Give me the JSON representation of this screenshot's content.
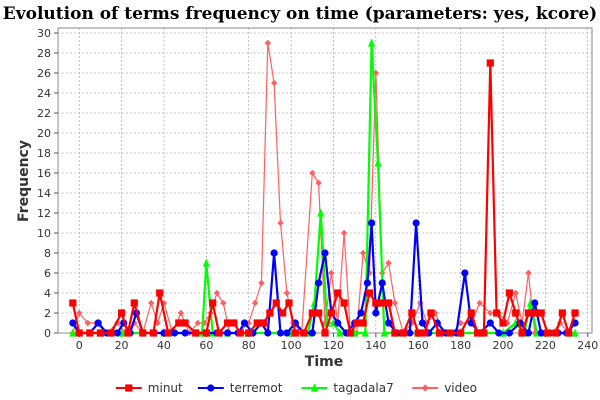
{
  "chart_data": {
    "type": "line",
    "title": "Evolution of terms frequency on time (parameters: yes, kcore)",
    "xlabel": "Time",
    "ylabel": "Frequency",
    "xlim": [
      -10,
      242
    ],
    "ylim": [
      0,
      30.5
    ],
    "x_ticks": [
      0,
      20,
      40,
      60,
      80,
      100,
      120,
      140,
      160,
      180,
      200,
      220,
      240
    ],
    "y_ticks": [
      0,
      2,
      4,
      6,
      8,
      10,
      12,
      14,
      16,
      18,
      20,
      22,
      24,
      26,
      28,
      30
    ],
    "grid": true,
    "legend_position": "bottom",
    "series": [
      {
        "name": "minut",
        "color": "#ff0000",
        "marker": "square",
        "points": [
          [
            -3,
            3
          ],
          [
            0,
            0
          ],
          [
            5,
            0
          ],
          [
            10,
            0
          ],
          [
            15,
            0
          ],
          [
            20,
            2
          ],
          [
            23,
            0
          ],
          [
            26,
            3
          ],
          [
            30,
            0
          ],
          [
            35,
            0
          ],
          [
            38,
            4
          ],
          [
            42,
            0
          ],
          [
            47,
            1
          ],
          [
            50,
            1
          ],
          [
            55,
            0
          ],
          [
            60,
            0
          ],
          [
            63,
            3
          ],
          [
            66,
            0
          ],
          [
            70,
            1
          ],
          [
            73,
            1
          ],
          [
            76,
            0
          ],
          [
            80,
            0
          ],
          [
            84,
            1
          ],
          [
            87,
            1
          ],
          [
            90,
            2
          ],
          [
            93,
            3
          ],
          [
            96,
            2
          ],
          [
            99,
            3
          ],
          [
            102,
            0
          ],
          [
            106,
            0
          ],
          [
            110,
            2
          ],
          [
            113,
            2
          ],
          [
            116,
            0
          ],
          [
            119,
            2
          ],
          [
            122,
            4
          ],
          [
            125,
            3
          ],
          [
            128,
            0
          ],
          [
            131,
            1
          ],
          [
            134,
            1
          ],
          [
            137,
            4
          ],
          [
            140,
            3
          ],
          [
            143,
            3
          ],
          [
            146,
            3
          ],
          [
            149,
            0
          ],
          [
            153,
            0
          ],
          [
            157,
            2
          ],
          [
            160,
            0
          ],
          [
            163,
            0
          ],
          [
            166,
            2
          ],
          [
            170,
            0
          ],
          [
            175,
            0
          ],
          [
            180,
            0
          ],
          [
            185,
            2
          ],
          [
            188,
            0
          ],
          [
            191,
            0
          ],
          [
            194,
            27
          ],
          [
            197,
            2
          ],
          [
            200,
            1
          ],
          [
            203,
            4
          ],
          [
            206,
            2
          ],
          [
            209,
            0
          ],
          [
            212,
            2
          ],
          [
            215,
            2
          ],
          [
            218,
            2
          ],
          [
            221,
            0
          ],
          [
            225,
            0
          ],
          [
            228,
            2
          ],
          [
            231,
            0
          ],
          [
            234,
            2
          ]
        ]
      },
      {
        "name": "terremot",
        "color": "#0000ff",
        "marker": "circle",
        "points": [
          [
            -3,
            1
          ],
          [
            0,
            0
          ],
          [
            5,
            0
          ],
          [
            9,
            1
          ],
          [
            13,
            0
          ],
          [
            18,
            0
          ],
          [
            21,
            1
          ],
          [
            24,
            0
          ],
          [
            27,
            2
          ],
          [
            30,
            0
          ],
          [
            35,
            0
          ],
          [
            40,
            0
          ],
          [
            45,
            0
          ],
          [
            50,
            0
          ],
          [
            55,
            0
          ],
          [
            60,
            0
          ],
          [
            65,
            0
          ],
          [
            70,
            0
          ],
          [
            75,
            0
          ],
          [
            78,
            1
          ],
          [
            82,
            0
          ],
          [
            86,
            1
          ],
          [
            89,
            0
          ],
          [
            92,
            8
          ],
          [
            95,
            0
          ],
          [
            98,
            0
          ],
          [
            102,
            1
          ],
          [
            106,
            0
          ],
          [
            110,
            0
          ],
          [
            113,
            5
          ],
          [
            116,
            8
          ],
          [
            119,
            2
          ],
          [
            122,
            1
          ],
          [
            126,
            0
          ],
          [
            130,
            1
          ],
          [
            133,
            2
          ],
          [
            136,
            5
          ],
          [
            138,
            11
          ],
          [
            140,
            2
          ],
          [
            143,
            5
          ],
          [
            146,
            1
          ],
          [
            150,
            0
          ],
          [
            153,
            0
          ],
          [
            156,
            0
          ],
          [
            159,
            11
          ],
          [
            162,
            1
          ],
          [
            165,
            0
          ],
          [
            169,
            1
          ],
          [
            173,
            0
          ],
          [
            178,
            0
          ],
          [
            182,
            6
          ],
          [
            185,
            1
          ],
          [
            189,
            0
          ],
          [
            194,
            1
          ],
          [
            198,
            0
          ],
          [
            203,
            0
          ],
          [
            208,
            1
          ],
          [
            212,
            0
          ],
          [
            215,
            3
          ],
          [
            218,
            0
          ],
          [
            222,
            0
          ],
          [
            226,
            0
          ],
          [
            230,
            0
          ],
          [
            234,
            1
          ]
        ]
      },
      {
        "name": "tagadala7",
        "color": "#00ff00",
        "marker": "triangle",
        "points": [
          [
            -3,
            0
          ],
          [
            10,
            0
          ],
          [
            20,
            0
          ],
          [
            40,
            0
          ],
          [
            58,
            0
          ],
          [
            60,
            7
          ],
          [
            63,
            0
          ],
          [
            70,
            0
          ],
          [
            80,
            0
          ],
          [
            100,
            0
          ],
          [
            108,
            0
          ],
          [
            111,
            3
          ],
          [
            114,
            12
          ],
          [
            117,
            1
          ],
          [
            120,
            1
          ],
          [
            123,
            0
          ],
          [
            130,
            0
          ],
          [
            135,
            0
          ],
          [
            138,
            29
          ],
          [
            141,
            17
          ],
          [
            144,
            0
          ],
          [
            150,
            0
          ],
          [
            160,
            0
          ],
          [
            170,
            0
          ],
          [
            180,
            0
          ],
          [
            190,
            0
          ],
          [
            200,
            0
          ],
          [
            206,
            1
          ],
          [
            210,
            0
          ],
          [
            213,
            3
          ],
          [
            216,
            0
          ],
          [
            220,
            0
          ],
          [
            234,
            0
          ]
        ]
      },
      {
        "name": "video",
        "color": "#ff6060",
        "marker": "diamond",
        "points": [
          [
            -3,
            0
          ],
          [
            0,
            2
          ],
          [
            4,
            1
          ],
          [
            8,
            1
          ],
          [
            13,
            0
          ],
          [
            18,
            1
          ],
          [
            22,
            0
          ],
          [
            26,
            1
          ],
          [
            30,
            0
          ],
          [
            34,
            3
          ],
          [
            37,
            1
          ],
          [
            40,
            3
          ],
          [
            44,
            0
          ],
          [
            48,
            2
          ],
          [
            52,
            0
          ],
          [
            56,
            1
          ],
          [
            59,
            1
          ],
          [
            62,
            2
          ],
          [
            65,
            4
          ],
          [
            68,
            3
          ],
          [
            71,
            0
          ],
          [
            75,
            0
          ],
          [
            80,
            1
          ],
          [
            83,
            3
          ],
          [
            86,
            5
          ],
          [
            89,
            29
          ],
          [
            92,
            25
          ],
          [
            95,
            11
          ],
          [
            98,
            4
          ],
          [
            101,
            1
          ],
          [
            105,
            0
          ],
          [
            110,
            16
          ],
          [
            113,
            15
          ],
          [
            116,
            1
          ],
          [
            119,
            6
          ],
          [
            122,
            1
          ],
          [
            125,
            10
          ],
          [
            128,
            0
          ],
          [
            131,
            0
          ],
          [
            134,
            8
          ],
          [
            137,
            6
          ],
          [
            140,
            26
          ],
          [
            143,
            6
          ],
          [
            146,
            7
          ],
          [
            149,
            3
          ],
          [
            153,
            0
          ],
          [
            157,
            1
          ],
          [
            161,
            3
          ],
          [
            164,
            1
          ],
          [
            168,
            2
          ],
          [
            172,
            0
          ],
          [
            176,
            0
          ],
          [
            180,
            1
          ],
          [
            185,
            1
          ],
          [
            189,
            3
          ],
          [
            194,
            2
          ],
          [
            198,
            2
          ],
          [
            202,
            1
          ],
          [
            206,
            4
          ],
          [
            209,
            1
          ],
          [
            212,
            6
          ],
          [
            215,
            0
          ],
          [
            219,
            0
          ],
          [
            223,
            0
          ],
          [
            227,
            1
          ],
          [
            231,
            0
          ],
          [
            234,
            1
          ]
        ]
      }
    ]
  }
}
